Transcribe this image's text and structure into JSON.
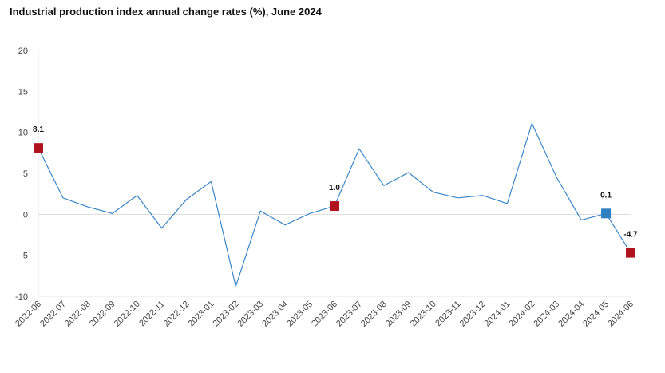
{
  "chart_data": {
    "type": "line",
    "title": "Industrial production index annual change rates (%), June 2024",
    "xlabel": "",
    "ylabel": "",
    "ylim": [
      -10,
      20
    ],
    "yticks": [
      "20",
      "15",
      "10",
      "5",
      "0",
      "-5",
      "-10"
    ],
    "ytick_values": [
      20,
      15,
      10,
      5,
      0,
      -5,
      -10
    ],
    "categories": [
      "2022-06",
      "2022-07",
      "2022-08",
      "2022-09",
      "2022-10",
      "2022-11",
      "2022-12",
      "2023-01",
      "2023-02",
      "2023-03",
      "2023-04",
      "2023-05",
      "2023-06",
      "2023-07",
      "2023-08",
      "2023-09",
      "2023-10",
      "2023-11",
      "2023-12",
      "2024-01",
      "2024-02",
      "2024-03",
      "2024-04",
      "2024-05",
      "2024-06"
    ],
    "series": [
      {
        "name": "Annual change rate",
        "color": "#3a86c8",
        "values": [
          8.1,
          2.0,
          0.9,
          0.1,
          2.3,
          -1.7,
          1.8,
          4.0,
          -8.8,
          0.4,
          -1.3,
          0.1,
          1.0,
          8.0,
          3.5,
          5.1,
          2.7,
          2.0,
          2.3,
          1.3,
          11.1,
          4.5,
          -0.7,
          0.1,
          -4.7
        ]
      }
    ],
    "highlights": [
      {
        "index": 0,
        "label": "8.1",
        "color": "#b0141c"
      },
      {
        "index": 12,
        "label": "1.0",
        "color": "#b0141c"
      },
      {
        "index": 23,
        "label": "0.1",
        "color": "#2f7fc1"
      },
      {
        "index": 24,
        "label": "-4.7",
        "color": "#b0141c"
      }
    ],
    "grid": false,
    "legend": "none"
  }
}
